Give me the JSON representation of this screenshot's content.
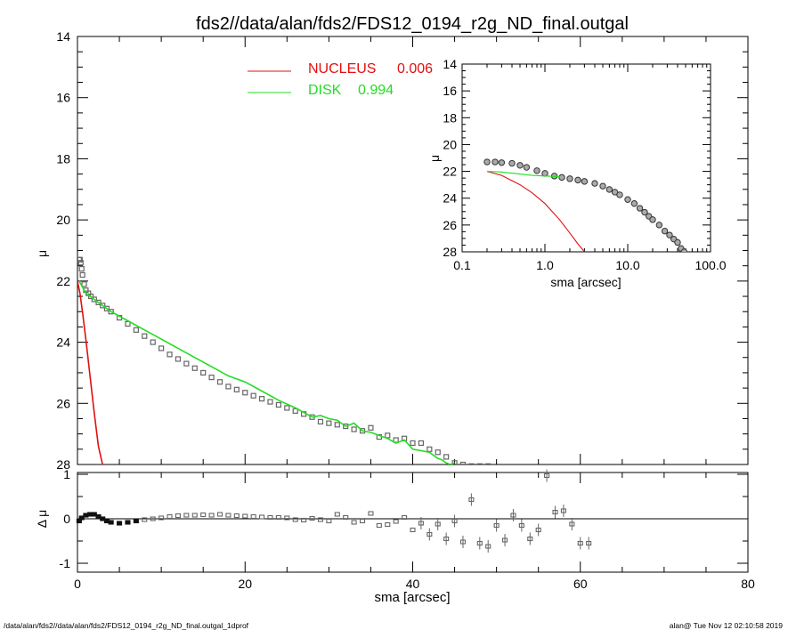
{
  "title": "fds2//data/alan/fds2/FDS12_0194_r2g_ND_final.outgal",
  "footer_left": "/data/alan/fds2//data/alan/fds2/FDS12_0194_r2g_ND_final.outgal_1dprof",
  "footer_right": "alan@  Tue Nov 12 02:10:58 2019",
  "colors": {
    "nucleus": "#e01010",
    "disk": "#22dd22",
    "data": "#666666",
    "axes": "#000000"
  },
  "chart_data": [
    {
      "id": "main",
      "type": "scatter",
      "xlabel": "sma [arcsec]",
      "ylabel": "μ",
      "xlim": [
        0,
        80
      ],
      "ylim": [
        28,
        14
      ],
      "yreversed": true,
      "xticks": [
        "0",
        "20",
        "40",
        "60",
        "80"
      ],
      "yticks": [
        "14",
        "16",
        "18",
        "20",
        "22",
        "24",
        "26",
        "28"
      ],
      "legend": [
        {
          "label": "NUCLEUS",
          "value": "0.006",
          "color": "#e01010"
        },
        {
          "label": "DISK",
          "value": "0.994",
          "color": "#22dd22"
        }
      ],
      "series": [
        {
          "name": "NUCLEUS",
          "kind": "line",
          "x": [
            0,
            0.3,
            0.6,
            1.0,
            1.5,
            2.0,
            2.5,
            3.0
          ],
          "y": [
            22.0,
            22.4,
            23.0,
            23.9,
            25.1,
            26.3,
            27.4,
            28.0
          ]
        },
        {
          "name": "DISK",
          "kind": "line",
          "x": [
            0.2,
            1.0,
            2.0,
            4.0,
            6.0,
            8.0,
            10.0,
            12.0,
            14.0,
            16.0,
            18.0,
            20.0,
            22.0,
            24.0,
            26.0,
            28.0,
            29.0,
            30.0,
            31.0,
            32.0,
            33.0,
            34.0,
            35.0,
            36.0,
            37.0,
            38.0,
            39.0,
            40.0,
            41.0,
            42.0,
            43.0,
            43.5,
            44.0,
            44.5,
            45.0
          ],
          "y": [
            22.0,
            22.4,
            22.6,
            23.0,
            23.3,
            23.6,
            23.9,
            24.2,
            24.5,
            24.8,
            25.1,
            25.3,
            25.6,
            25.9,
            26.15,
            26.45,
            26.4,
            26.5,
            26.55,
            26.75,
            26.65,
            26.9,
            26.95,
            27.05,
            27.15,
            27.3,
            27.2,
            27.5,
            27.55,
            27.6,
            27.8,
            27.85,
            27.95,
            28.0,
            27.95
          ]
        },
        {
          "name": "data",
          "kind": "points",
          "x": [
            0.2,
            0.3,
            0.4,
            0.5,
            0.6,
            0.8,
            1.0,
            1.3,
            1.6,
            2.0,
            2.5,
            3.0,
            3.5,
            4.0,
            5.0,
            6.0,
            7.0,
            8.0,
            9.0,
            10.0,
            11.0,
            12.0,
            13.0,
            14.0,
            15.0,
            16.0,
            17.0,
            18.0,
            19.0,
            20.0,
            21.0,
            22.0,
            23.0,
            24.0,
            25.0,
            26.0,
            27.0,
            28.0,
            29.0,
            30.0,
            31.0,
            32.0,
            33.0,
            34.0,
            35.0,
            36.0,
            37.0,
            38.0,
            39.0,
            40.0,
            41.0,
            42.0,
            43.0,
            44.0,
            45.0,
            46.0,
            47.0,
            48.0,
            49.0
          ],
          "y": [
            21.3,
            21.3,
            21.4,
            21.6,
            21.8,
            22.1,
            22.3,
            22.4,
            22.5,
            22.6,
            22.7,
            22.8,
            22.9,
            23.0,
            23.2,
            23.4,
            23.6,
            23.8,
            24.0,
            24.2,
            24.4,
            24.55,
            24.7,
            24.85,
            25.0,
            25.15,
            25.3,
            25.45,
            25.55,
            25.65,
            25.75,
            25.85,
            25.95,
            26.05,
            26.15,
            26.25,
            26.35,
            26.45,
            26.6,
            26.65,
            26.7,
            26.75,
            26.85,
            26.9,
            26.8,
            27.1,
            27.05,
            27.2,
            27.15,
            27.3,
            27.3,
            27.5,
            27.6,
            27.75,
            27.95,
            28.0,
            28.05,
            28.05,
            28.05
          ]
        }
      ]
    },
    {
      "id": "residual",
      "type": "scatter",
      "xlabel": "sma [arcsec]",
      "ylabel": "Δ μ",
      "xlim": [
        0,
        80
      ],
      "ylim": [
        -1.05,
        1.05
      ],
      "yticks": [
        "1",
        "0",
        "-1"
      ],
      "series": [
        {
          "name": "residual",
          "kind": "points",
          "x": [
            0.2,
            0.5,
            1.0,
            1.5,
            2.0,
            2.5,
            3.0,
            3.5,
            4.0,
            5.0,
            6.0,
            7.0,
            8.0,
            9.0,
            10.0,
            11.0,
            12.0,
            13.0,
            14.0,
            15.0,
            16.0,
            17.0,
            18.0,
            19.0,
            20.0,
            21.0,
            22.0,
            23.0,
            24.0,
            25.0,
            26.0,
            27.0,
            28.0,
            29.0,
            30.0,
            31.0,
            32.0,
            33.0,
            34.0,
            35.0,
            36.0,
            37.0,
            38.0,
            39.0,
            40.0,
            41.0,
            42.0,
            43.0,
            44.0,
            45.0,
            46.0,
            47.0,
            48.0,
            49.0,
            50.0,
            51.0,
            52.0,
            53.0,
            54.0,
            55.0,
            56.0,
            57.0,
            58.0,
            59.0,
            60.0,
            61.0
          ],
          "y": [
            -0.05,
            0.02,
            0.08,
            0.1,
            0.1,
            0.05,
            0.0,
            -0.05,
            -0.08,
            -0.1,
            -0.08,
            -0.05,
            -0.02,
            0.0,
            0.02,
            0.05,
            0.07,
            0.08,
            0.08,
            0.09,
            0.08,
            0.1,
            0.08,
            0.07,
            0.06,
            0.05,
            0.04,
            0.03,
            0.03,
            0.02,
            -0.02,
            -0.03,
            0.01,
            -0.02,
            -0.05,
            0.1,
            0.03,
            -0.08,
            -0.05,
            0.12,
            -0.15,
            -0.13,
            -0.06,
            0.03,
            -0.25,
            -0.1,
            -0.35,
            -0.12,
            -0.45,
            -0.05,
            -0.52,
            0.43,
            -0.55,
            -0.62,
            -0.15,
            -0.48,
            0.08,
            -0.15,
            -0.45,
            -0.25,
            0.97,
            0.15,
            0.18,
            -0.12,
            -0.55,
            -0.55
          ]
        }
      ]
    },
    {
      "id": "inset",
      "type": "scatter",
      "xlabel": "sma [arcsec]",
      "ylabel": "μ",
      "xscale": "log",
      "xlim": [
        0.1,
        100
      ],
      "ylim": [
        28,
        14
      ],
      "yreversed": true,
      "xticks": [
        "0.1",
        "1.0",
        "10.0",
        "100.0"
      ],
      "yticks": [
        "14",
        "16",
        "18",
        "20",
        "22",
        "24",
        "26",
        "28"
      ],
      "series": [
        {
          "name": "NUCLEUS",
          "kind": "line",
          "x": [
            0.2,
            0.3,
            0.5,
            0.7,
            1.0,
            1.5,
            2.0,
            2.5,
            3.0
          ],
          "y": [
            22.0,
            22.3,
            23.0,
            23.6,
            24.4,
            25.6,
            26.6,
            27.4,
            28.0
          ]
        },
        {
          "name": "DISK",
          "kind": "line",
          "x": [
            0.2,
            0.3,
            0.5,
            0.7,
            1.0,
            1.5
          ],
          "y": [
            22.0,
            22.05,
            22.2,
            22.3,
            22.35,
            22.4
          ]
        },
        {
          "name": "data",
          "kind": "points",
          "x": [
            0.2,
            0.25,
            0.3,
            0.4,
            0.5,
            0.6,
            0.8,
            1.0,
            1.3,
            1.6,
            2.0,
            2.5,
            3.0,
            4.0,
            5.0,
            6.0,
            7.0,
            8.0,
            10.0,
            12.0,
            14.0,
            16.0,
            18.0,
            20.0,
            24.0,
            28.0,
            32.0,
            36.0,
            40.0,
            44.0,
            48.0
          ],
          "y": [
            21.3,
            21.3,
            21.35,
            21.4,
            21.55,
            21.7,
            21.95,
            22.15,
            22.35,
            22.45,
            22.55,
            22.65,
            22.75,
            22.9,
            23.1,
            23.35,
            23.55,
            23.75,
            24.1,
            24.4,
            24.75,
            25.05,
            25.35,
            25.6,
            26.0,
            26.45,
            26.75,
            27.05,
            27.3,
            27.75,
            28.0
          ]
        }
      ]
    }
  ]
}
